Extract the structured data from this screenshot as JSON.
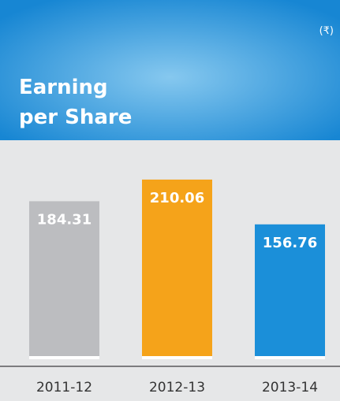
{
  "chart_data": {
    "type": "bar",
    "title": "Earning per Share",
    "unit": "(₹)",
    "categories": [
      "2011-12",
      "2012-13",
      "2013-14"
    ],
    "values": [
      184.31,
      210.06,
      156.76
    ],
    "colors": [
      "#bcbdc0",
      "#f5a31a",
      "#1b8fd9"
    ],
    "ylim": [
      0,
      240
    ]
  }
}
